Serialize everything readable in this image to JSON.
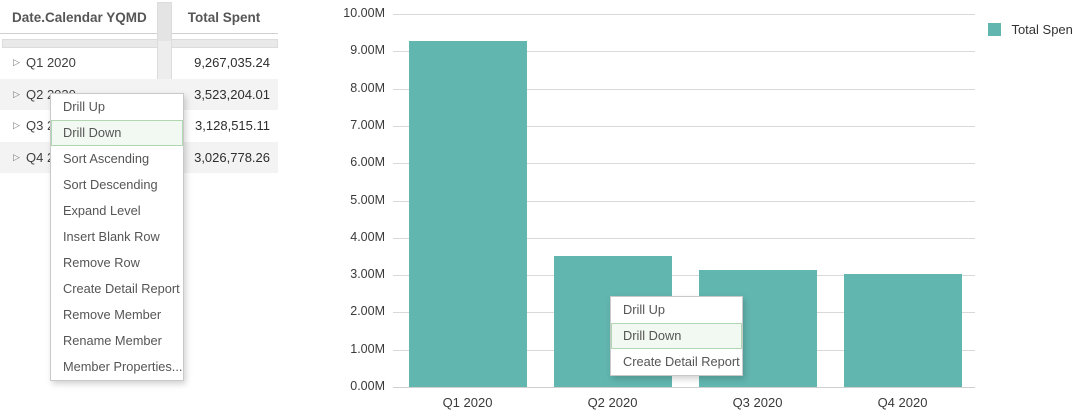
{
  "crosstab": {
    "columns": [
      "Date.Calendar YQMD",
      "Total Spent"
    ],
    "row_expander_icon": "▷",
    "rows": [
      {
        "label": "Q1 2020",
        "value": "9,267,035.24"
      },
      {
        "label": "Q2 2020",
        "value": "3,523,204.01"
      },
      {
        "label": "Q3 2020",
        "value": "3,128,515.11"
      },
      {
        "label": "Q4 2020",
        "value": "3,026,778.26"
      }
    ]
  },
  "crosstab_context_menu": {
    "items": [
      "Drill Up",
      "Drill Down",
      "Sort Ascending",
      "Sort Descending",
      "Expand Level",
      "Insert Blank Row",
      "Remove Row",
      "Create Detail Report",
      "Remove Member",
      "Rename Member",
      "Member Properties..."
    ],
    "highlighted_item": "Drill Down"
  },
  "chart_context_menu": {
    "items": [
      "Drill Up",
      "Drill Down",
      "Create Detail Report"
    ],
    "highlighted_item": "Drill Down"
  },
  "chart_data": {
    "type": "bar",
    "categories": [
      "Q1 2020",
      "Q2 2020",
      "Q3 2020",
      "Q4 2020"
    ],
    "series": [
      {
        "name": "Total Spent",
        "values": [
          9267035.24,
          3523204.01,
          3128515.11,
          3026778.26
        ]
      }
    ],
    "y_ticks": [
      "10.00M",
      "9.00M",
      "8.00M",
      "7.00M",
      "6.00M",
      "5.00M",
      "4.00M",
      "3.00M",
      "2.00M",
      "1.00M",
      "0.00M"
    ],
    "ylim": [
      0,
      10000000
    ],
    "grid": true,
    "legend": {
      "label": "Total Spent",
      "position": "top-right"
    },
    "bar_color": "#62b6b0"
  },
  "colors": {
    "bar": "#62b6b0",
    "row_stripe": "#f3f3f3",
    "gridline": "#d9d9d9",
    "menu_highlight_bg": "#f2f9f2",
    "menu_highlight_border": "#b0d7b0"
  }
}
